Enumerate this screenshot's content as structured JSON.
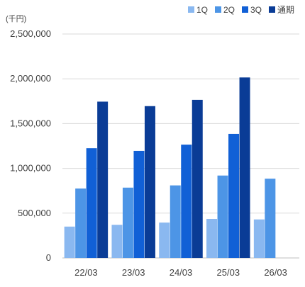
{
  "chart_data": {
    "type": "bar",
    "unit_label": "(千円)",
    "categories": [
      "22/03",
      "23/03",
      "24/03",
      "25/03",
      "26/03"
    ],
    "series": [
      {
        "name": "1Q",
        "color": "#8ab8f0",
        "values": [
          350000,
          370000,
          395000,
          435000,
          430000
        ]
      },
      {
        "name": "2Q",
        "color": "#4d95e6",
        "values": [
          775000,
          785000,
          810000,
          920000,
          885000
        ]
      },
      {
        "name": "3Q",
        "color": "#1160d6",
        "values": [
          1225000,
          1195000,
          1265000,
          1385000,
          null
        ]
      },
      {
        "name": "通期",
        "color": "#0a3c96",
        "values": [
          1745000,
          1695000,
          1765000,
          2015000,
          null
        ]
      }
    ],
    "ylim": [
      0,
      2500000
    ],
    "yticks": [
      0,
      500000,
      1000000,
      1500000,
      2000000,
      2500000
    ],
    "ytick_labels": [
      "0",
      "500,000",
      "1,000,000",
      "1,500,000",
      "2,000,000",
      "2,500,000"
    ],
    "grid": true,
    "legend_position": "top-right",
    "title": "",
    "xlabel": "",
    "ylabel": ""
  }
}
